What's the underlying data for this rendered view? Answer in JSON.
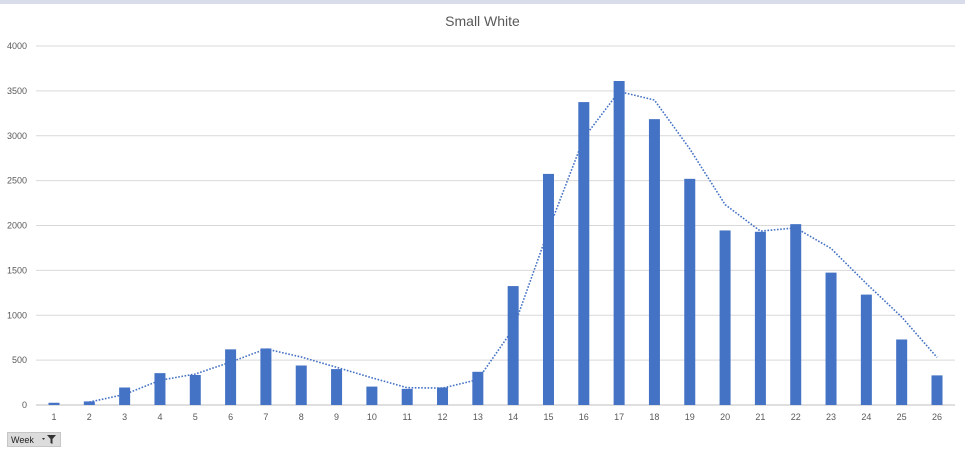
{
  "chart_data": {
    "type": "bar",
    "title": "Small White",
    "xlabel": "",
    "ylabel": "",
    "categories": [
      "1",
      "2",
      "3",
      "4",
      "5",
      "6",
      "7",
      "8",
      "9",
      "10",
      "11",
      "12",
      "13",
      "14",
      "15",
      "16",
      "17",
      "18",
      "19",
      "20",
      "21",
      "22",
      "23",
      "24",
      "25",
      "26"
    ],
    "values": [
      25,
      40,
      195,
      355,
      335,
      620,
      630,
      440,
      400,
      205,
      180,
      195,
      370,
      1325,
      2575,
      3375,
      3610,
      3185,
      2520,
      1945,
      1930,
      2015,
      1475,
      1230,
      730,
      330
    ],
    "ylim": [
      0,
      4000
    ],
    "yticks": [
      "0",
      "500",
      "1000",
      "1500",
      "2000",
      "2500",
      "3000",
      "3500",
      "4000"
    ],
    "bar_color": "#4472c4",
    "trendline": {
      "type": "moving-average",
      "style": "dotted",
      "color": "#4472c4",
      "points": [
        {
          "x": "2",
          "y": 32
        },
        {
          "x": "3",
          "y": 118
        },
        {
          "x": "4",
          "y": 275
        },
        {
          "x": "5",
          "y": 345
        },
        {
          "x": "6",
          "y": 478
        },
        {
          "x": "7",
          "y": 625
        },
        {
          "x": "8",
          "y": 535
        },
        {
          "x": "9",
          "y": 420
        },
        {
          "x": "10",
          "y": 303
        },
        {
          "x": "11",
          "y": 193
        },
        {
          "x": "12",
          "y": 188
        },
        {
          "x": "13",
          "y": 283
        },
        {
          "x": "14",
          "y": 848
        },
        {
          "x": "15",
          "y": 1950
        },
        {
          "x": "16",
          "y": 2975
        },
        {
          "x": "17",
          "y": 3493
        },
        {
          "x": "18",
          "y": 3398
        },
        {
          "x": "19",
          "y": 2853
        },
        {
          "x": "20",
          "y": 2233
        },
        {
          "x": "21",
          "y": 1938
        },
        {
          "x": "22",
          "y": 1973
        },
        {
          "x": "23",
          "y": 1745
        },
        {
          "x": "24",
          "y": 1353
        },
        {
          "x": "25",
          "y": 980
        },
        {
          "x": "26",
          "y": 530
        }
      ]
    },
    "grid": true,
    "gridline_color": "#d9d9d9",
    "legend": "none"
  },
  "field_button": {
    "label": "Week",
    "icon": "filter-dropdown-icon"
  }
}
